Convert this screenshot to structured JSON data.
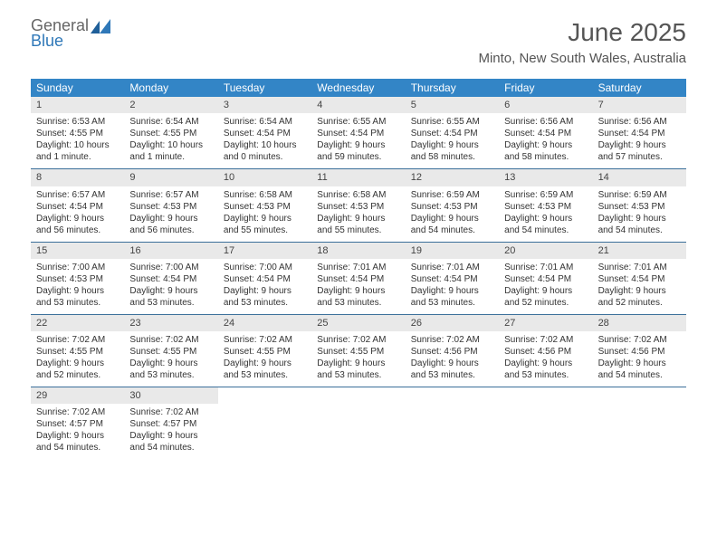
{
  "brand": {
    "top": "General",
    "bottom": "Blue"
  },
  "title": "June 2025",
  "location": "Minto, New South Wales, Australia",
  "colors": {
    "header_bg": "#3385c6",
    "header_text": "#ffffff",
    "num_bg": "#e9e9e9",
    "rule": "#3b6f9a",
    "brand_blue": "#2f78b8"
  },
  "day_names": [
    "Sunday",
    "Monday",
    "Tuesday",
    "Wednesday",
    "Thursday",
    "Friday",
    "Saturday"
  ],
  "weeks": [
    [
      {
        "n": "1",
        "sr": "Sunrise: 6:53 AM",
        "ss": "Sunset: 4:55 PM",
        "d1": "Daylight: 10 hours",
        "d2": "and 1 minute."
      },
      {
        "n": "2",
        "sr": "Sunrise: 6:54 AM",
        "ss": "Sunset: 4:55 PM",
        "d1": "Daylight: 10 hours",
        "d2": "and 1 minute."
      },
      {
        "n": "3",
        "sr": "Sunrise: 6:54 AM",
        "ss": "Sunset: 4:54 PM",
        "d1": "Daylight: 10 hours",
        "d2": "and 0 minutes."
      },
      {
        "n": "4",
        "sr": "Sunrise: 6:55 AM",
        "ss": "Sunset: 4:54 PM",
        "d1": "Daylight: 9 hours",
        "d2": "and 59 minutes."
      },
      {
        "n": "5",
        "sr": "Sunrise: 6:55 AM",
        "ss": "Sunset: 4:54 PM",
        "d1": "Daylight: 9 hours",
        "d2": "and 58 minutes."
      },
      {
        "n": "6",
        "sr": "Sunrise: 6:56 AM",
        "ss": "Sunset: 4:54 PM",
        "d1": "Daylight: 9 hours",
        "d2": "and 58 minutes."
      },
      {
        "n": "7",
        "sr": "Sunrise: 6:56 AM",
        "ss": "Sunset: 4:54 PM",
        "d1": "Daylight: 9 hours",
        "d2": "and 57 minutes."
      }
    ],
    [
      {
        "n": "8",
        "sr": "Sunrise: 6:57 AM",
        "ss": "Sunset: 4:54 PM",
        "d1": "Daylight: 9 hours",
        "d2": "and 56 minutes."
      },
      {
        "n": "9",
        "sr": "Sunrise: 6:57 AM",
        "ss": "Sunset: 4:53 PM",
        "d1": "Daylight: 9 hours",
        "d2": "and 56 minutes."
      },
      {
        "n": "10",
        "sr": "Sunrise: 6:58 AM",
        "ss": "Sunset: 4:53 PM",
        "d1": "Daylight: 9 hours",
        "d2": "and 55 minutes."
      },
      {
        "n": "11",
        "sr": "Sunrise: 6:58 AM",
        "ss": "Sunset: 4:53 PM",
        "d1": "Daylight: 9 hours",
        "d2": "and 55 minutes."
      },
      {
        "n": "12",
        "sr": "Sunrise: 6:59 AM",
        "ss": "Sunset: 4:53 PM",
        "d1": "Daylight: 9 hours",
        "d2": "and 54 minutes."
      },
      {
        "n": "13",
        "sr": "Sunrise: 6:59 AM",
        "ss": "Sunset: 4:53 PM",
        "d1": "Daylight: 9 hours",
        "d2": "and 54 minutes."
      },
      {
        "n": "14",
        "sr": "Sunrise: 6:59 AM",
        "ss": "Sunset: 4:53 PM",
        "d1": "Daylight: 9 hours",
        "d2": "and 54 minutes."
      }
    ],
    [
      {
        "n": "15",
        "sr": "Sunrise: 7:00 AM",
        "ss": "Sunset: 4:53 PM",
        "d1": "Daylight: 9 hours",
        "d2": "and 53 minutes."
      },
      {
        "n": "16",
        "sr": "Sunrise: 7:00 AM",
        "ss": "Sunset: 4:54 PM",
        "d1": "Daylight: 9 hours",
        "d2": "and 53 minutes."
      },
      {
        "n": "17",
        "sr": "Sunrise: 7:00 AM",
        "ss": "Sunset: 4:54 PM",
        "d1": "Daylight: 9 hours",
        "d2": "and 53 minutes."
      },
      {
        "n": "18",
        "sr": "Sunrise: 7:01 AM",
        "ss": "Sunset: 4:54 PM",
        "d1": "Daylight: 9 hours",
        "d2": "and 53 minutes."
      },
      {
        "n": "19",
        "sr": "Sunrise: 7:01 AM",
        "ss": "Sunset: 4:54 PM",
        "d1": "Daylight: 9 hours",
        "d2": "and 53 minutes."
      },
      {
        "n": "20",
        "sr": "Sunrise: 7:01 AM",
        "ss": "Sunset: 4:54 PM",
        "d1": "Daylight: 9 hours",
        "d2": "and 52 minutes."
      },
      {
        "n": "21",
        "sr": "Sunrise: 7:01 AM",
        "ss": "Sunset: 4:54 PM",
        "d1": "Daylight: 9 hours",
        "d2": "and 52 minutes."
      }
    ],
    [
      {
        "n": "22",
        "sr": "Sunrise: 7:02 AM",
        "ss": "Sunset: 4:55 PM",
        "d1": "Daylight: 9 hours",
        "d2": "and 52 minutes."
      },
      {
        "n": "23",
        "sr": "Sunrise: 7:02 AM",
        "ss": "Sunset: 4:55 PM",
        "d1": "Daylight: 9 hours",
        "d2": "and 53 minutes."
      },
      {
        "n": "24",
        "sr": "Sunrise: 7:02 AM",
        "ss": "Sunset: 4:55 PM",
        "d1": "Daylight: 9 hours",
        "d2": "and 53 minutes."
      },
      {
        "n": "25",
        "sr": "Sunrise: 7:02 AM",
        "ss": "Sunset: 4:55 PM",
        "d1": "Daylight: 9 hours",
        "d2": "and 53 minutes."
      },
      {
        "n": "26",
        "sr": "Sunrise: 7:02 AM",
        "ss": "Sunset: 4:56 PM",
        "d1": "Daylight: 9 hours",
        "d2": "and 53 minutes."
      },
      {
        "n": "27",
        "sr": "Sunrise: 7:02 AM",
        "ss": "Sunset: 4:56 PM",
        "d1": "Daylight: 9 hours",
        "d2": "and 53 minutes."
      },
      {
        "n": "28",
        "sr": "Sunrise: 7:02 AM",
        "ss": "Sunset: 4:56 PM",
        "d1": "Daylight: 9 hours",
        "d2": "and 54 minutes."
      }
    ],
    [
      {
        "n": "29",
        "sr": "Sunrise: 7:02 AM",
        "ss": "Sunset: 4:57 PM",
        "d1": "Daylight: 9 hours",
        "d2": "and 54 minutes."
      },
      {
        "n": "30",
        "sr": "Sunrise: 7:02 AM",
        "ss": "Sunset: 4:57 PM",
        "d1": "Daylight: 9 hours",
        "d2": "and 54 minutes."
      },
      null,
      null,
      null,
      null,
      null
    ]
  ]
}
